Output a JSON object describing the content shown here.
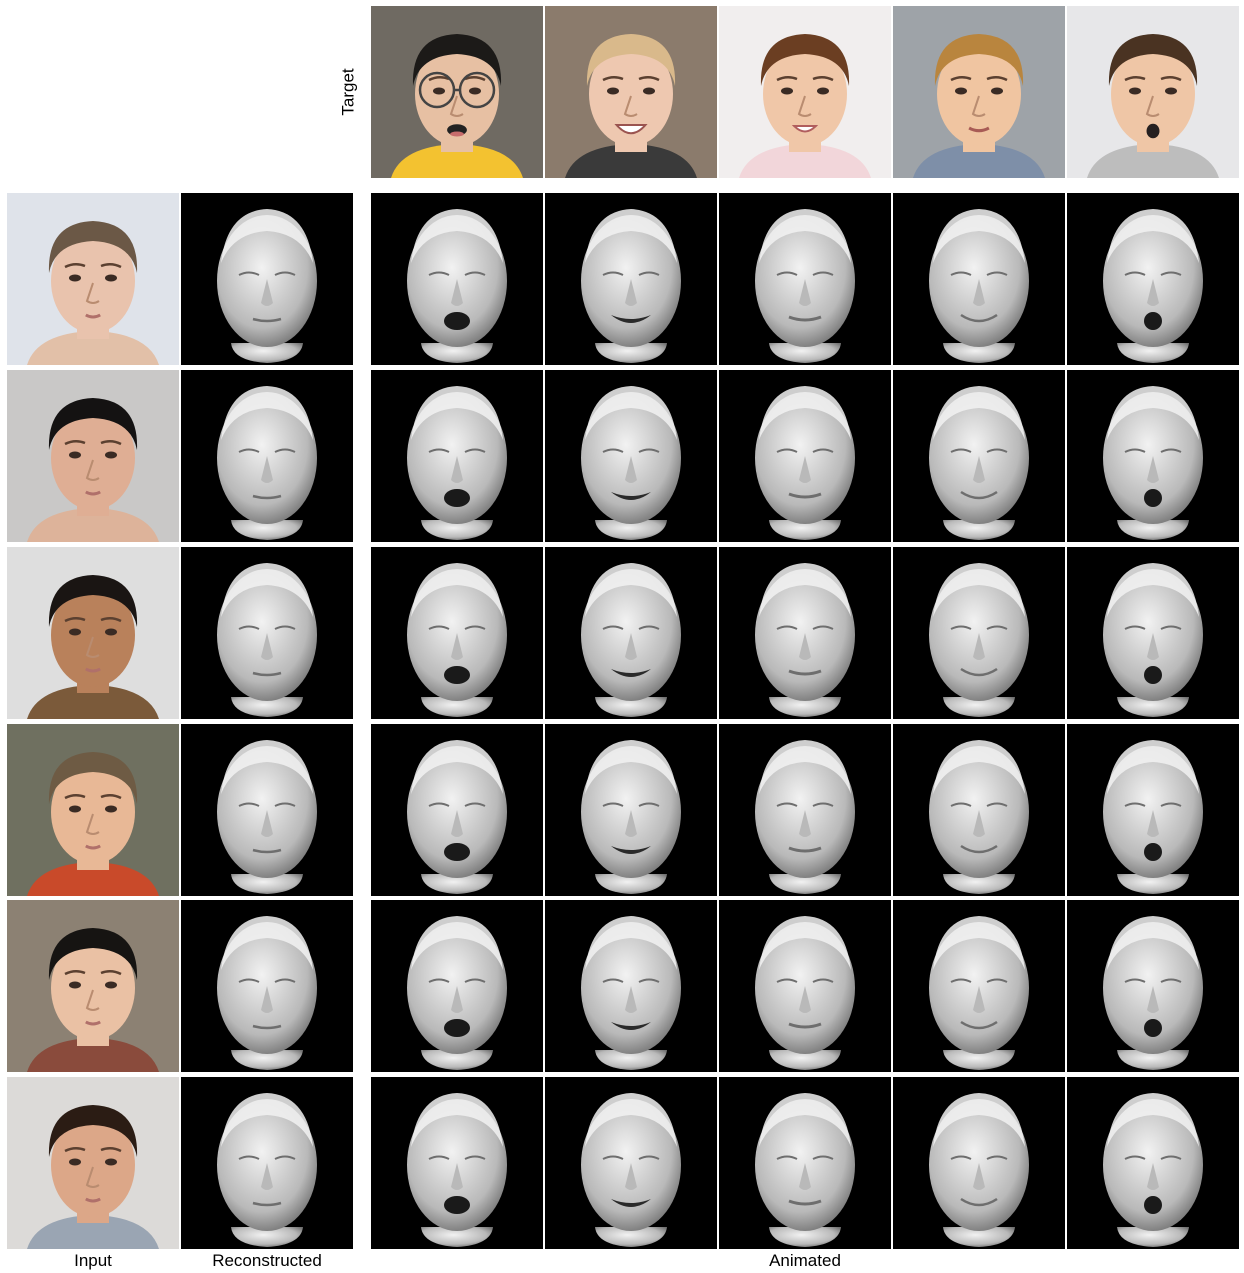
{
  "labels": {
    "target": "Target",
    "input": "Input",
    "reconstructed": "Reconstructed",
    "animated": "Animated"
  },
  "targets": [
    {
      "expression": "open-mouth",
      "bg": "#6f6a62",
      "skin": "#e7c0a3",
      "hair": "#1c1a18",
      "shirt": "#f3c230",
      "glasses": true
    },
    {
      "expression": "big-smile",
      "bg": "#8b7b6c",
      "skin": "#eec8b0",
      "hair": "#d9b98b",
      "shirt": "#3a3a3a",
      "glasses": false
    },
    {
      "expression": "smile",
      "bg": "#f1eeee",
      "skin": "#f0c7a8",
      "hair": "#6b3e22",
      "shirt": "#f2d6da",
      "glasses": false
    },
    {
      "expression": "soft-smile",
      "bg": "#9ea3a8",
      "skin": "#f0c5a1",
      "hair": "#b9853e",
      "shirt": "#7e8fa8",
      "glasses": false
    },
    {
      "expression": "surprise",
      "bg": "#e7e7e9",
      "skin": "#efc6a6",
      "hair": "#4a3322",
      "shirt": "#bdbdbd",
      "glasses": false
    }
  ],
  "inputs": [
    {
      "bg": "#dfe3ea",
      "skin": "#e9c3ad",
      "hair": "#6b5846",
      "shirt": "#e2c0a8"
    },
    {
      "bg": "#c9c8c7",
      "skin": "#dfae94",
      "hair": "#141212",
      "shirt": "#ddb39a"
    },
    {
      "bg": "#dedede",
      "skin": "#b9815b",
      "hair": "#1a1513",
      "shirt": "#7b5a3a"
    },
    {
      "bg": "#6f7060",
      "skin": "#e8b896",
      "hair": "#6e5b44",
      "shirt": "#c94a2a"
    },
    {
      "bg": "#8c8173",
      "skin": "#eac1a4",
      "hair": "#161412",
      "shirt": "#8a4b3c"
    },
    {
      "bg": "#dcdad8",
      "skin": "#dca788",
      "hair": "#2b1c14",
      "shirt": "#9aa5b3"
    }
  ],
  "mesh_expressions": [
    "neutral",
    "open-mouth",
    "smile",
    "neutral-smile",
    "closed-smile",
    "surprise"
  ],
  "colors": {
    "mesh_bg": "#000000",
    "mesh_light": "#f2f2f2",
    "mesh_mid": "#b9b9b9",
    "mesh_dark": "#6e6e6e"
  }
}
